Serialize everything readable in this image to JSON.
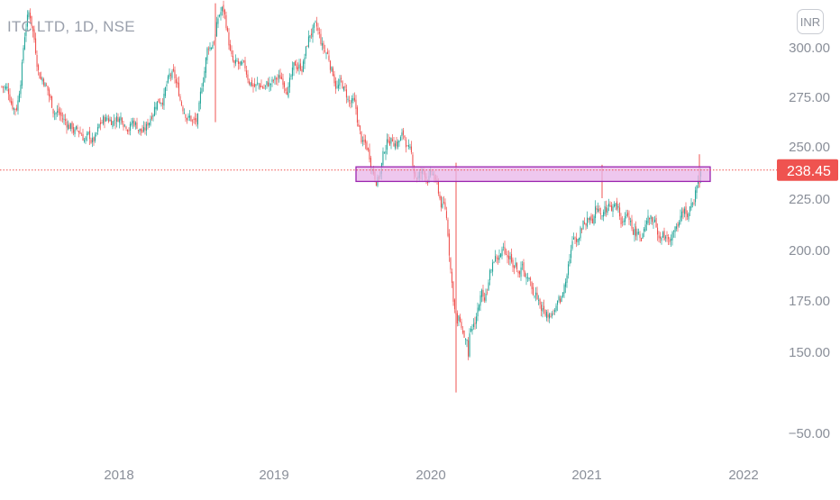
{
  "header": {
    "symbol_text": "ITC LTD, 1D, NSE",
    "currency": "INR"
  },
  "chart_data": {
    "type": "candlestick",
    "y_ticks": [
      "300.00",
      "275.00",
      "250.00",
      "225.00",
      "200.00",
      "175.00",
      "150.00",
      "−50.00"
    ],
    "x_ticks": [
      "2018",
      "2019",
      "2020",
      "2021",
      "2022"
    ],
    "last_price": "238.45",
    "resistance_zone": {
      "low": 233,
      "high": 240
    },
    "price_path": [
      [
        "2017-04",
        280
      ],
      [
        "2017-05",
        272
      ],
      [
        "2017-06",
        318
      ],
      [
        "2017-07",
        288
      ],
      [
        "2017-08",
        270
      ],
      [
        "2017-09",
        262
      ],
      [
        "2017-10",
        256
      ],
      [
        "2017-11",
        252
      ],
      [
        "2017-12",
        262
      ],
      [
        "2018-01",
        266
      ],
      [
        "2018-02",
        265
      ],
      [
        "2018-03",
        258
      ],
      [
        "2018-04",
        276
      ],
      [
        "2018-05",
        284
      ],
      [
        "2018-06",
        270
      ],
      [
        "2018-07",
        262
      ],
      [
        "2018-08",
        300
      ],
      [
        "2018-09",
        318
      ],
      [
        "2018-10",
        288
      ],
      [
        "2018-11",
        282
      ],
      [
        "2018-12",
        280
      ],
      [
        "2019-01",
        281
      ],
      [
        "2019-02",
        284
      ],
      [
        "2019-03",
        290
      ],
      [
        "2019-04",
        308
      ],
      [
        "2019-05",
        295
      ],
      [
        "2019-06",
        282
      ],
      [
        "2019-07",
        270
      ],
      [
        "2019-08",
        248
      ],
      [
        "2019-09",
        238
      ],
      [
        "2019-10",
        255
      ],
      [
        "2019-11",
        255
      ],
      [
        "2019-12",
        236
      ],
      [
        "2020-01",
        236
      ],
      [
        "2020-02",
        220
      ],
      [
        "2020-03",
        170
      ],
      [
        "2020-04",
        152
      ],
      [
        "2020-05",
        176
      ],
      [
        "2020-06",
        196
      ],
      [
        "2020-07",
        198
      ],
      [
        "2020-08",
        192
      ],
      [
        "2020-09",
        178
      ],
      [
        "2020-10",
        168
      ],
      [
        "2020-11",
        172
      ],
      [
        "2020-12",
        205
      ],
      [
        "2021-01",
        215
      ],
      [
        "2021-02",
        222
      ],
      [
        "2021-03",
        222
      ],
      [
        "2021-04",
        212
      ],
      [
        "2021-05",
        208
      ],
      [
        "2021-06",
        210
      ],
      [
        "2021-07",
        205
      ],
      [
        "2021-08",
        210
      ],
      [
        "2021-09",
        218
      ],
      [
        "2021-10",
        242
      ]
    ],
    "colors": {
      "up": "#26a69a",
      "down": "#ef5350",
      "zone_fill": "#e8b4e8",
      "zone_border": "#9c27b0",
      "price_line": "#ef5350"
    }
  }
}
